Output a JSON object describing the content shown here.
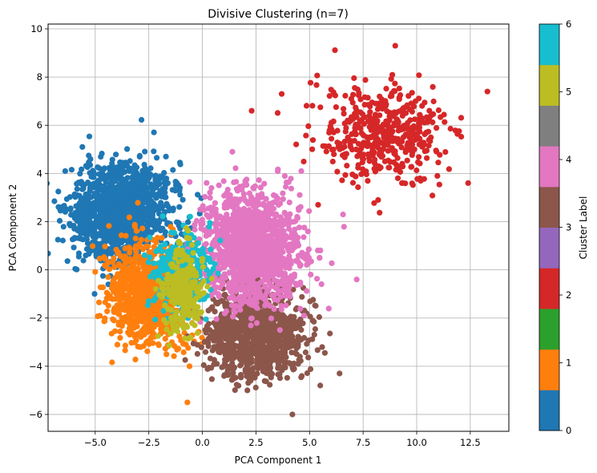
{
  "chart_data": {
    "type": "scatter",
    "title": "Divisive Clustering (n=7)",
    "xlabel": "PCA Component 1",
    "ylabel": "PCA Component 2",
    "xlim": [
      -7.2,
      14.3
    ],
    "ylim": [
      -6.7,
      10.2
    ],
    "xticks": [
      -5.0,
      -2.5,
      0.0,
      2.5,
      5.0,
      7.5,
      10.0,
      12.5
    ],
    "xtick_labels": [
      "−5.0",
      "−2.5",
      "0.0",
      "2.5",
      "5.0",
      "7.5",
      "10.0",
      "12.5"
    ],
    "yticks": [
      -6,
      -4,
      -2,
      0,
      2,
      4,
      6,
      8,
      10
    ],
    "ytick_labels": [
      "−6",
      "−4",
      "−2",
      "0",
      "2",
      "4",
      "6",
      "8",
      "10"
    ],
    "grid": true,
    "colorbar": {
      "label": "Cluster Label",
      "range": [
        0,
        6
      ],
      "ticks": [
        "0",
        "1",
        "2",
        "3",
        "4",
        "5",
        "6"
      ],
      "colors": [
        "#1f77b4",
        "#ff7f0e",
        "#2ca02c",
        "#d62728",
        "#9467bd",
        "#8c564b",
        "#e377c2",
        "#7f7f7f",
        "#bcbd22",
        "#17becf"
      ]
    },
    "clusters": [
      {
        "label": 0,
        "color": "#1f77b4",
        "center": [
          -3.8,
          2.4
        ],
        "spread": [
          1.1,
          1.0
        ],
        "count": 1400
      },
      {
        "label": 1,
        "color": "#ff7f0e",
        "center": [
          -2.5,
          -1.0
        ],
        "spread": [
          0.9,
          1.0
        ],
        "count": 1000
      },
      {
        "label": 2,
        "color": "#d62728",
        "center": [
          8.5,
          5.6
        ],
        "spread": [
          1.5,
          1.0
        ],
        "count": 450
      },
      {
        "label": 3,
        "color": "#8c564b",
        "center": [
          2.5,
          -2.7
        ],
        "spread": [
          1.1,
          0.9
        ],
        "count": 1000
      },
      {
        "label": 4,
        "color": "#e377c2",
        "center": [
          2.4,
          0.9
        ],
        "spread": [
          1.1,
          1.1
        ],
        "count": 1400
      },
      {
        "label": 5,
        "color": "#bcbd22",
        "center": [
          -0.9,
          -0.9
        ],
        "spread": [
          0.5,
          0.9
        ],
        "count": 250
      },
      {
        "label": 6,
        "color": "#17becf",
        "center": [
          -1.0,
          0.0
        ],
        "spread": [
          0.7,
          0.8
        ],
        "count": 300
      }
    ],
    "outliers": [
      {
        "color": "#ff7f0e",
        "points": [
          [
            -0.7,
            -5.5
          ],
          [
            -0.6,
            -4.0
          ]
        ]
      },
      {
        "color": "#e377c2",
        "points": [
          [
            7.2,
            -0.4
          ],
          [
            1.4,
            4.9
          ]
        ]
      },
      {
        "color": "#d62728",
        "points": [
          [
            9.0,
            9.3
          ],
          [
            2.3,
            6.6
          ],
          [
            13.3,
            7.4
          ],
          [
            12.4,
            3.6
          ],
          [
            8.2,
            2.9
          ],
          [
            5.4,
            2.7
          ],
          [
            3.7,
            7.3
          ]
        ]
      },
      {
        "color": "#1f77b4",
        "points": [
          [
            -6.4,
            4.1
          ],
          [
            -5.6,
            5.1
          ],
          [
            -1.7,
            4.7
          ]
        ]
      },
      {
        "color": "#8c564b",
        "points": [
          [
            4.2,
            -6.0
          ],
          [
            6.4,
            -4.3
          ],
          [
            5.5,
            -4.8
          ]
        ]
      }
    ]
  }
}
